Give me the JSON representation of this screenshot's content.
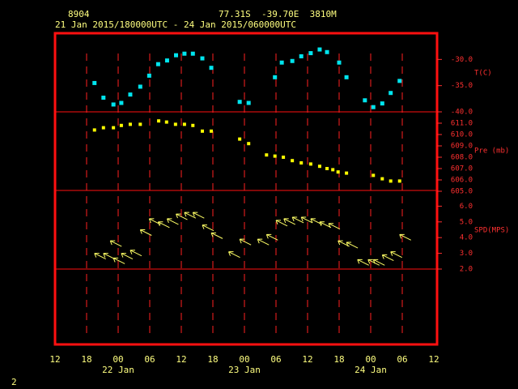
{
  "station": "8904",
  "location": "77.31S  -39.70E  3810M",
  "period": "21 Jan 2015/180000UTC - 24 Jan 2015/060000UTC",
  "page_number": "2",
  "chart_data": [
    {
      "type": "scatter",
      "y_label": "T(C)",
      "color": "#00e5ee",
      "x": [
        7.5,
        9.2,
        11.1,
        12.6,
        14.3,
        16.2,
        17.9,
        19.6,
        21.3,
        23.0,
        24.6,
        26.2,
        28.0,
        29.7,
        35.1,
        36.8,
        41.8,
        43.1,
        45.1,
        46.8,
        48.6,
        50.3,
        51.7,
        54.0,
        55.4,
        58.9,
        60.5,
        62.2,
        63.8,
        65.5
      ],
      "values": [
        -34.5,
        -37.3,
        -38.6,
        -38.3,
        -36.7,
        -35.2,
        -33.1,
        -30.9,
        -30.2,
        -29.2,
        -28.9,
        -28.9,
        -29.8,
        -31.6,
        -38.1,
        -38.3,
        -33.4,
        -30.6,
        -30.3,
        -29.4,
        -28.8,
        -28.1,
        -28.6,
        -30.6,
        -33.4,
        -37.8,
        -39.1,
        -38.4,
        -36.4,
        -34.1
      ],
      "xlim": [
        0,
        72
      ],
      "ylim": [
        -40,
        -25
      ],
      "yticks": [
        {
          "value": -30,
          "label": "-30.0"
        },
        {
          "value": -35,
          "label": "-35.0"
        },
        {
          "value": -40,
          "label": "-40.0"
        }
      ]
    },
    {
      "type": "scatter",
      "y_label": "Pre (mb)",
      "color": "#ffff00",
      "x": [
        7.5,
        9.2,
        11.1,
        12.6,
        14.3,
        16.2,
        19.7,
        21.2,
        22.9,
        24.6,
        26.2,
        28.0,
        29.7,
        35.1,
        36.8,
        40.2,
        41.8,
        43.4,
        45.1,
        46.8,
        48.6,
        50.3,
        51.7,
        52.8,
        53.8,
        55.4,
        60.5,
        62.2,
        63.8,
        65.5
      ],
      "values": [
        610.4,
        610.6,
        610.6,
        610.8,
        610.9,
        610.9,
        611.2,
        611.1,
        610.9,
        610.9,
        610.8,
        610.3,
        610.3,
        609.6,
        609.2,
        608.2,
        608.1,
        608.0,
        607.7,
        607.5,
        607.4,
        607.2,
        607.0,
        606.9,
        606.7,
        606.6,
        606.4,
        606.1,
        605.9,
        605.9
      ],
      "xlim": [
        0,
        72
      ],
      "ylim": [
        605,
        612
      ],
      "yticks": [
        {
          "value": 611,
          "label": "611.0"
        },
        {
          "value": 610,
          "label": "610.0"
        },
        {
          "value": 609,
          "label": "609.0"
        },
        {
          "value": 608,
          "label": "608.0"
        },
        {
          "value": 607,
          "label": "607.0"
        },
        {
          "value": 606,
          "label": "606.0"
        },
        {
          "value": 605,
          "label": "605.0"
        }
      ]
    },
    {
      "type": "arrows",
      "y_label": "SPD(MPS)",
      "color": "#ffff66",
      "x": [
        7.5,
        9.2,
        10.5,
        11.1,
        12.6,
        14.3,
        16.2,
        17.9,
        19.6,
        21.3,
        23.0,
        24.6,
        26.2,
        28.0,
        29.7,
        33.0,
        35.1,
        38.5,
        40.2,
        42.0,
        43.5,
        45.1,
        46.8,
        48.6,
        50.3,
        52.0,
        53.8,
        55.4,
        57.5,
        59.5,
        60.5,
        62.2,
        63.8,
        65.5
      ],
      "values": [
        3.0,
        3.0,
        3.8,
        2.7,
        3.0,
        3.2,
        4.5,
        5.2,
        5.0,
        5.2,
        5.5,
        5.6,
        5.6,
        4.8,
        4.3,
        3.1,
        3.9,
        3.9,
        4.2,
        5.1,
        5.2,
        5.3,
        5.3,
        5.2,
        5.0,
        4.9,
        3.8,
        3.7,
        2.6,
        2.6,
        2.6,
        2.9,
        3.1,
        4.2
      ],
      "xlim": [
        0,
        72
      ],
      "ylim": [
        2,
        7
      ],
      "yticks": [
        {
          "value": 6,
          "label": "6.0"
        },
        {
          "value": 5,
          "label": "5.0"
        },
        {
          "value": 4,
          "label": "4.0"
        },
        {
          "value": 3,
          "label": "3.0"
        },
        {
          "value": 2,
          "label": "2.0"
        }
      ],
      "xticks": [
        {
          "value": 0,
          "label": "12"
        },
        {
          "value": 6,
          "label": "18"
        },
        {
          "value": 12,
          "label": "00"
        },
        {
          "value": 18,
          "label": "06"
        },
        {
          "value": 24,
          "label": "12"
        },
        {
          "value": 30,
          "label": "18"
        },
        {
          "value": 36,
          "label": "00"
        },
        {
          "value": 42,
          "label": "06"
        },
        {
          "value": 48,
          "label": "12"
        },
        {
          "value": 54,
          "label": "18"
        },
        {
          "value": 60,
          "label": "00"
        },
        {
          "value": 66,
          "label": "06"
        },
        {
          "value": 72,
          "label": "12"
        }
      ],
      "x_groups": [
        {
          "value": 12,
          "label": "22 Jan"
        },
        {
          "value": 36,
          "label": "23 Jan"
        },
        {
          "value": 60,
          "label": "24 Jan"
        }
      ]
    }
  ]
}
